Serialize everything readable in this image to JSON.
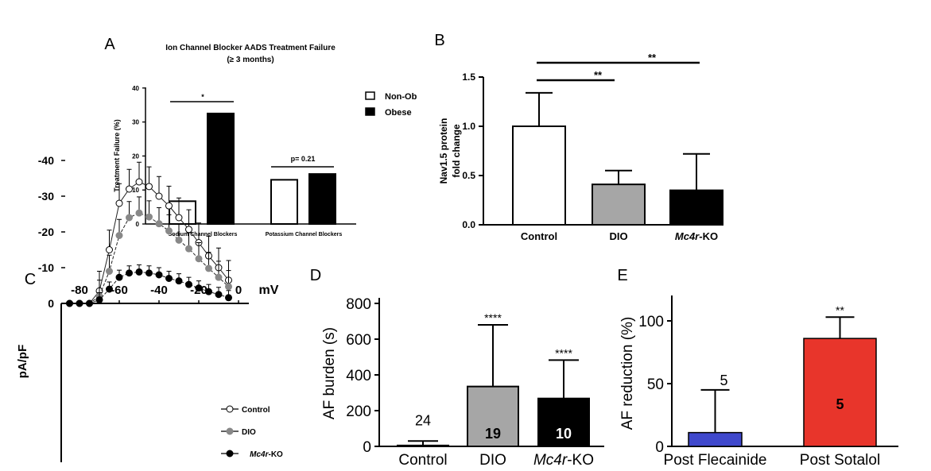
{
  "chart_data": [
    {
      "panel": "A",
      "type": "bar",
      "title": "Ion Channel Blocker AADS Treatment Failure",
      "subtitle": "(≥ 3 months)",
      "ylabel": "Treatment Failure (%)",
      "ylim": [
        0,
        40
      ],
      "yticks": [
        0,
        10,
        20,
        30,
        40
      ],
      "categories": [
        "Sodium Channel Blockers",
        "Potassium Channel Blockers"
      ],
      "series": [
        {
          "name": "Non-Ob",
          "color": "#ffffff",
          "values": [
            6.7,
            13
          ]
        },
        {
          "name": "Obese",
          "color": "#000000",
          "values": [
            32.5,
            14.7
          ]
        }
      ],
      "annotations": [
        "*",
        "p= 0.21"
      ],
      "legend": "top-right"
    },
    {
      "panel": "B",
      "type": "bar",
      "ylabel": [
        "Nav1.5 protein",
        "fold change"
      ],
      "ylim": [
        0,
        1.5
      ],
      "yticks": [
        "0.0",
        "0.5",
        "1.0",
        "1.5"
      ],
      "categories": [
        "Control",
        "DIO",
        "Mc4r-KO"
      ],
      "values": [
        1.0,
        0.41,
        0.35
      ],
      "errors": [
        0.34,
        0.14,
        0.37
      ],
      "colors": [
        "#ffffff",
        "#a6a6a6",
        "#000000"
      ],
      "annotations": [
        "**",
        "**"
      ]
    },
    {
      "panel": "C",
      "type": "line",
      "xlabel": "mV",
      "ylabel": "pA/pF",
      "xlim": [
        -90,
        0
      ],
      "ylim": [
        -45,
        0
      ],
      "xticks": [
        -80,
        -60,
        -40,
        -20,
        0
      ],
      "yticks": [
        0,
        -10,
        -20,
        -30,
        -40
      ],
      "x": [
        -85,
        -80,
        -75,
        -70,
        -65,
        -60,
        -55,
        -50,
        -45,
        -40,
        -35,
        -30,
        -25,
        -20,
        -15,
        -10,
        -5
      ],
      "series": [
        {
          "name": "Control",
          "fill": "#ffffff",
          "values": [
            0,
            0,
            0,
            -3.5,
            -15,
            -28,
            -32,
            -34,
            -32.7,
            -30,
            -27.3,
            -24,
            -20.7,
            -17,
            -13.3,
            -10,
            -6.5
          ],
          "error": 5.5
        },
        {
          "name": "DIO",
          "fill": "#888888",
          "values": [
            0,
            0,
            0,
            -2,
            -9,
            -19,
            -24,
            -25.3,
            -24.2,
            -22.3,
            -20.3,
            -17.7,
            -15.3,
            -12.5,
            -9.8,
            -7.3,
            -4.7
          ],
          "error": 4.5
        },
        {
          "name": "Mc4r-KO",
          "fill": "#000000",
          "values": [
            0,
            0,
            0,
            -1,
            -4,
            -7.3,
            -8.5,
            -8.8,
            -8.5,
            -8,
            -7,
            -6.3,
            -5.3,
            -4.3,
            -3.3,
            -2.5,
            -1.6
          ],
          "error": 2
        }
      ],
      "legend": "bottom-right"
    },
    {
      "panel": "D",
      "type": "bar",
      "ylabel": "AF burden (s)",
      "ylim": [
        0,
        800
      ],
      "yticks": [
        0,
        200,
        400,
        600,
        800
      ],
      "categories": [
        "Control",
        "DIO",
        "Mc4r-KO"
      ],
      "values": [
        5,
        335,
        268
      ],
      "errors": [
        25,
        345,
        215
      ],
      "colors": [
        "#ffffff",
        "#a6a6a6",
        "#000000"
      ],
      "n": [
        "24",
        "19",
        "10"
      ],
      "annotations": [
        "",
        "****",
        "****"
      ]
    },
    {
      "panel": "E",
      "type": "bar",
      "ylabel": "AF reduction (%)",
      "ylim": [
        0,
        120
      ],
      "yticks": [
        0,
        50,
        100
      ],
      "categories": [
        "Post Flecainide",
        "Post Sotalol"
      ],
      "values": [
        11,
        86
      ],
      "errors": [
        34,
        17
      ],
      "colors": [
        "#3f48cc",
        "#e8352b"
      ],
      "n": [
        "5",
        "5"
      ],
      "annotations": [
        "",
        "**"
      ]
    }
  ]
}
